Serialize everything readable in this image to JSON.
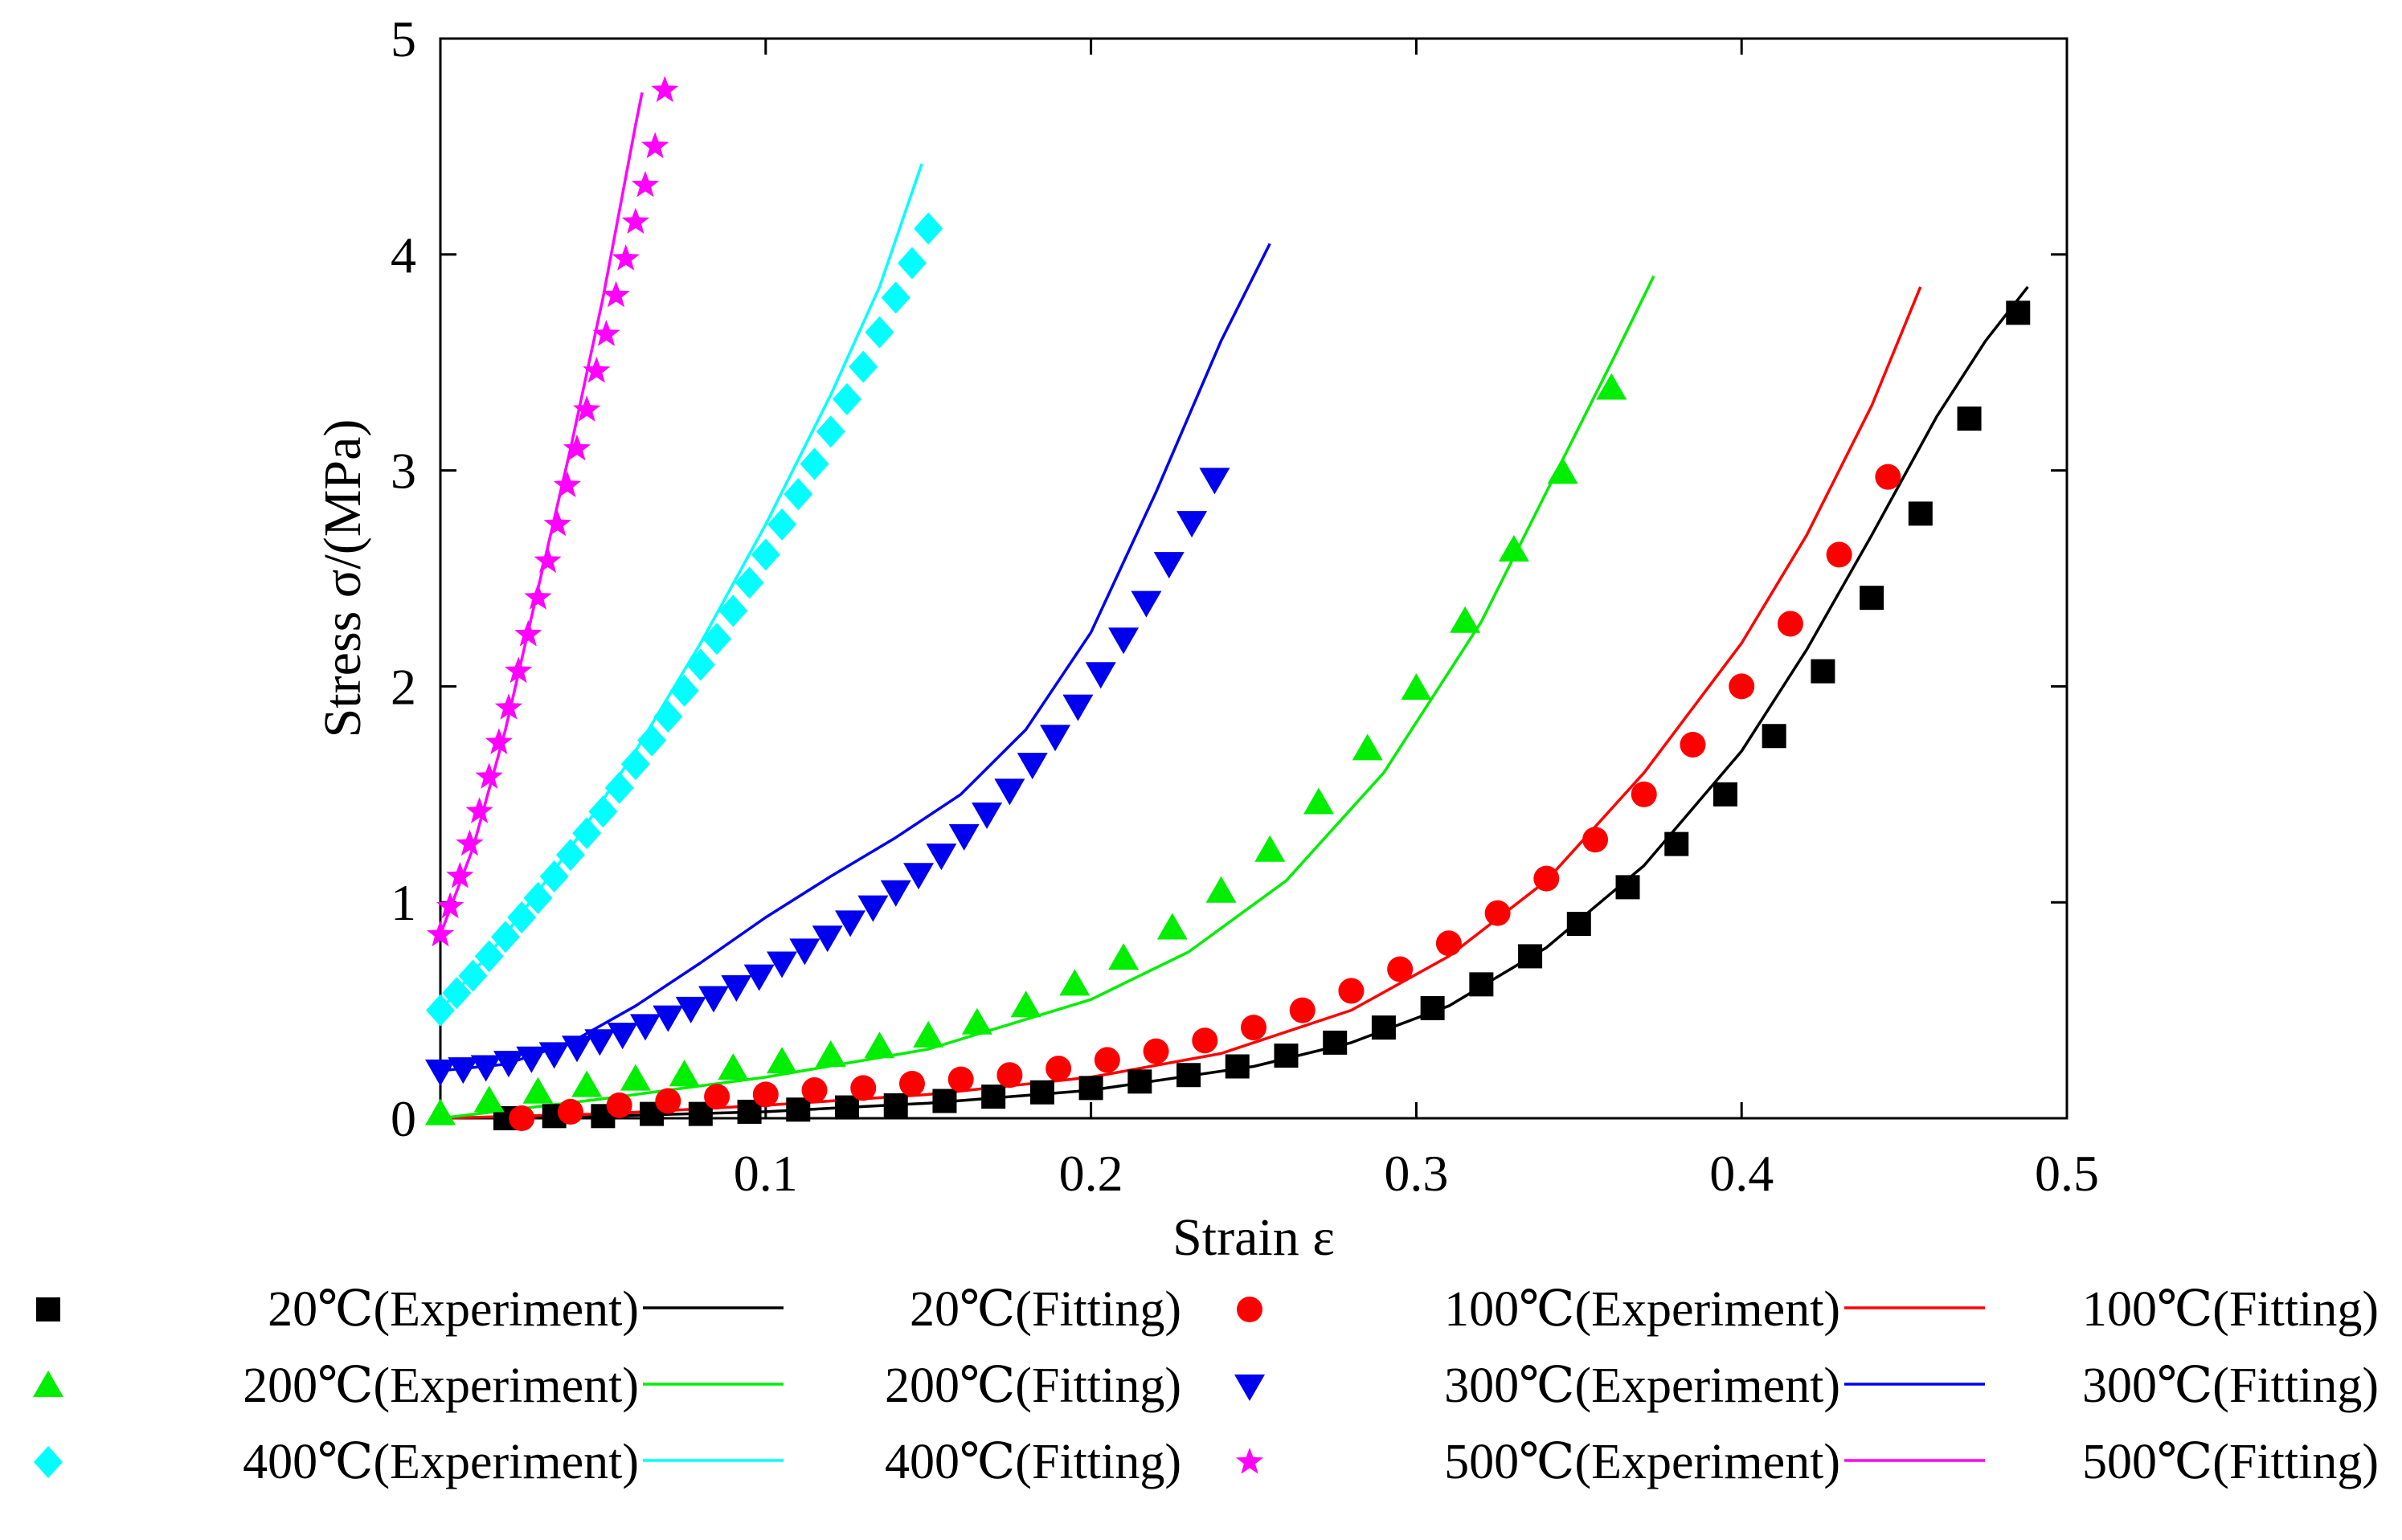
{
  "chart_data": {
    "type": "scatter",
    "title": "",
    "xlabel": "Strain  ε",
    "ylabel": "Stress  σ/(MPa)",
    "xlim": [
      0,
      0.5
    ],
    "ylim": [
      0,
      5
    ],
    "xticks": [
      0,
      0.1,
      0.2,
      0.3,
      0.4,
      0.5
    ],
    "xtick_labels": [
      "",
      "0.1",
      "0.2",
      "0.3",
      "0.4",
      "0.5"
    ],
    "yticks": [
      0,
      1,
      2,
      3,
      4,
      5
    ],
    "ytick_labels": [
      "0",
      "1",
      "2",
      "3",
      "4",
      "5"
    ],
    "grid": false,
    "legend_position": "bottom",
    "series": [
      {
        "temp": "20",
        "exp_name": "20℃(Experiment)",
        "fit_name": "20℃(Fitting)",
        "color": "#000000",
        "marker": "square",
        "exp_x": [
          0.02,
          0.035,
          0.05,
          0.065,
          0.08,
          0.095,
          0.11,
          0.125,
          0.14,
          0.155,
          0.17,
          0.185,
          0.2,
          0.215,
          0.23,
          0.245,
          0.26,
          0.275,
          0.29,
          0.305,
          0.32,
          0.335,
          0.35,
          0.365,
          0.38,
          0.395,
          0.41,
          0.425,
          0.44,
          0.455,
          0.47,
          0.485
        ],
        "exp_y": [
          0.0,
          0.01,
          0.01,
          0.02,
          0.02,
          0.03,
          0.04,
          0.05,
          0.06,
          0.08,
          0.1,
          0.12,
          0.14,
          0.17,
          0.2,
          0.24,
          0.29,
          0.35,
          0.42,
          0.51,
          0.62,
          0.75,
          0.9,
          1.07,
          1.27,
          1.5,
          1.77,
          2.07,
          2.41,
          2.8,
          3.24,
          3.73
        ],
        "fit_x": [
          0.0,
          0.05,
          0.1,
          0.15,
          0.2,
          0.25,
          0.28,
          0.31,
          0.34,
          0.37,
          0.4,
          0.42,
          0.44,
          0.46,
          0.475,
          0.488
        ],
        "fit_y": [
          0.0,
          0.01,
          0.03,
          0.07,
          0.13,
          0.24,
          0.35,
          0.52,
          0.79,
          1.17,
          1.7,
          2.17,
          2.7,
          3.25,
          3.6,
          3.85
        ]
      },
      {
        "temp": "100",
        "exp_name": "100℃(Experiment)",
        "fit_name": "100℃(Fitting)",
        "color": "#ff0000",
        "marker": "circle",
        "exp_x": [
          0.025,
          0.04,
          0.055,
          0.07,
          0.085,
          0.1,
          0.115,
          0.13,
          0.145,
          0.16,
          0.175,
          0.19,
          0.205,
          0.22,
          0.235,
          0.25,
          0.265,
          0.28,
          0.295,
          0.31,
          0.325,
          0.34,
          0.355,
          0.37,
          0.385,
          0.4,
          0.415,
          0.43,
          0.445
        ],
        "exp_y": [
          0.0,
          0.03,
          0.06,
          0.08,
          0.1,
          0.11,
          0.13,
          0.14,
          0.16,
          0.18,
          0.2,
          0.23,
          0.27,
          0.31,
          0.36,
          0.42,
          0.5,
          0.59,
          0.69,
          0.81,
          0.95,
          1.11,
          1.29,
          1.5,
          1.73,
          2.0,
          2.29,
          2.61,
          2.97
        ],
        "fit_x": [
          0.0,
          0.05,
          0.1,
          0.15,
          0.2,
          0.24,
          0.28,
          0.31,
          0.34,
          0.37,
          0.4,
          0.42,
          0.44,
          0.455
        ],
        "fit_y": [
          0.0,
          0.02,
          0.06,
          0.11,
          0.19,
          0.3,
          0.5,
          0.75,
          1.1,
          1.6,
          2.2,
          2.7,
          3.3,
          3.85
        ]
      },
      {
        "temp": "200",
        "exp_name": "200℃(Experiment)",
        "fit_name": "200℃(Fitting)",
        "color": "#00ee00",
        "marker": "triangle-up",
        "exp_x": [
          0.0,
          0.015,
          0.03,
          0.045,
          0.06,
          0.075,
          0.09,
          0.105,
          0.12,
          0.135,
          0.15,
          0.165,
          0.18,
          0.195,
          0.21,
          0.225,
          0.24,
          0.255,
          0.27,
          0.285,
          0.3,
          0.315,
          0.33,
          0.345,
          0.36
        ],
        "exp_y": [
          0.02,
          0.08,
          0.12,
          0.15,
          0.18,
          0.2,
          0.23,
          0.26,
          0.29,
          0.33,
          0.38,
          0.44,
          0.52,
          0.62,
          0.74,
          0.88,
          1.05,
          1.24,
          1.46,
          1.71,
          1.99,
          2.3,
          2.63,
          2.99,
          3.38
        ],
        "fit_x": [
          0.0,
          0.05,
          0.1,
          0.15,
          0.2,
          0.23,
          0.26,
          0.29,
          0.32,
          0.34,
          0.36,
          0.373
        ],
        "fit_y": [
          0.0,
          0.09,
          0.19,
          0.32,
          0.55,
          0.77,
          1.1,
          1.6,
          2.3,
          2.9,
          3.5,
          3.9
        ]
      },
      {
        "temp": "300",
        "exp_name": "300℃(Experiment)",
        "fit_name": "300℃(Fitting)",
        "color": "#0000ee",
        "marker": "triangle-down",
        "exp_x": [
          0.0,
          0.007,
          0.014,
          0.021,
          0.028,
          0.035,
          0.042,
          0.049,
          0.056,
          0.063,
          0.07,
          0.077,
          0.084,
          0.091,
          0.098,
          0.105,
          0.112,
          0.119,
          0.126,
          0.133,
          0.14,
          0.147,
          0.154,
          0.161,
          0.168,
          0.175,
          0.182,
          0.189,
          0.196,
          0.203,
          0.21,
          0.217,
          0.224,
          0.231,
          0.238
        ],
        "exp_y": [
          0.22,
          0.23,
          0.24,
          0.26,
          0.28,
          0.3,
          0.33,
          0.36,
          0.39,
          0.43,
          0.47,
          0.51,
          0.56,
          0.61,
          0.66,
          0.72,
          0.78,
          0.84,
          0.91,
          0.98,
          1.05,
          1.13,
          1.22,
          1.31,
          1.41,
          1.52,
          1.64,
          1.77,
          1.91,
          2.06,
          2.22,
          2.39,
          2.57,
          2.76,
          2.96
        ],
        "fit_x": [
          0.0,
          0.02,
          0.04,
          0.06,
          0.08,
          0.1,
          0.12,
          0.14,
          0.16,
          0.18,
          0.2,
          0.22,
          0.24,
          0.255
        ],
        "fit_y": [
          0.22,
          0.25,
          0.35,
          0.52,
          0.72,
          0.93,
          1.12,
          1.3,
          1.5,
          1.8,
          2.25,
          2.9,
          3.6,
          4.05
        ]
      },
      {
        "temp": "400",
        "exp_name": "400℃(Experiment)",
        "fit_name": "400℃(Fitting)",
        "color": "#00ffff",
        "marker": "diamond",
        "exp_x": [
          0.0,
          0.005,
          0.01,
          0.015,
          0.02,
          0.025,
          0.03,
          0.035,
          0.04,
          0.045,
          0.05,
          0.055,
          0.06,
          0.065,
          0.07,
          0.075,
          0.08,
          0.085,
          0.09,
          0.095,
          0.1,
          0.105,
          0.11,
          0.115,
          0.12,
          0.125,
          0.13,
          0.135,
          0.14,
          0.145,
          0.15
        ],
        "exp_y": [
          0.5,
          0.58,
          0.66,
          0.75,
          0.84,
          0.93,
          1.02,
          1.12,
          1.22,
          1.32,
          1.42,
          1.53,
          1.64,
          1.75,
          1.86,
          1.98,
          2.1,
          2.22,
          2.35,
          2.48,
          2.61,
          2.75,
          2.89,
          3.03,
          3.18,
          3.33,
          3.48,
          3.64,
          3.8,
          3.96,
          4.12
        ],
        "fit_x": [
          0.0,
          0.02,
          0.04,
          0.06,
          0.08,
          0.1,
          0.12,
          0.135,
          0.148
        ],
        "fit_y": [
          0.5,
          0.85,
          1.25,
          1.7,
          2.2,
          2.75,
          3.35,
          3.85,
          4.42
        ]
      },
      {
        "temp": "500",
        "exp_name": "500℃(Experiment)",
        "fit_name": "500℃(Fitting)",
        "color": "#ff00ff",
        "marker": "star",
        "exp_x": [
          0.0,
          0.003,
          0.006,
          0.009,
          0.012,
          0.015,
          0.018,
          0.021,
          0.024,
          0.027,
          0.03,
          0.033,
          0.036,
          0.039,
          0.042,
          0.045,
          0.048,
          0.051,
          0.054,
          0.057,
          0.06,
          0.063,
          0.066,
          0.069
        ],
        "exp_y": [
          0.85,
          0.98,
          1.12,
          1.27,
          1.42,
          1.58,
          1.74,
          1.9,
          2.07,
          2.24,
          2.41,
          2.58,
          2.75,
          2.93,
          3.1,
          3.28,
          3.46,
          3.63,
          3.81,
          3.98,
          4.15,
          4.32,
          4.5,
          4.76
        ],
        "fit_x": [
          0.0,
          0.01,
          0.02,
          0.03,
          0.04,
          0.05,
          0.06,
          0.062
        ],
        "fit_y": [
          0.85,
          1.25,
          1.8,
          2.45,
          3.1,
          3.8,
          4.6,
          4.75
        ]
      }
    ]
  }
}
